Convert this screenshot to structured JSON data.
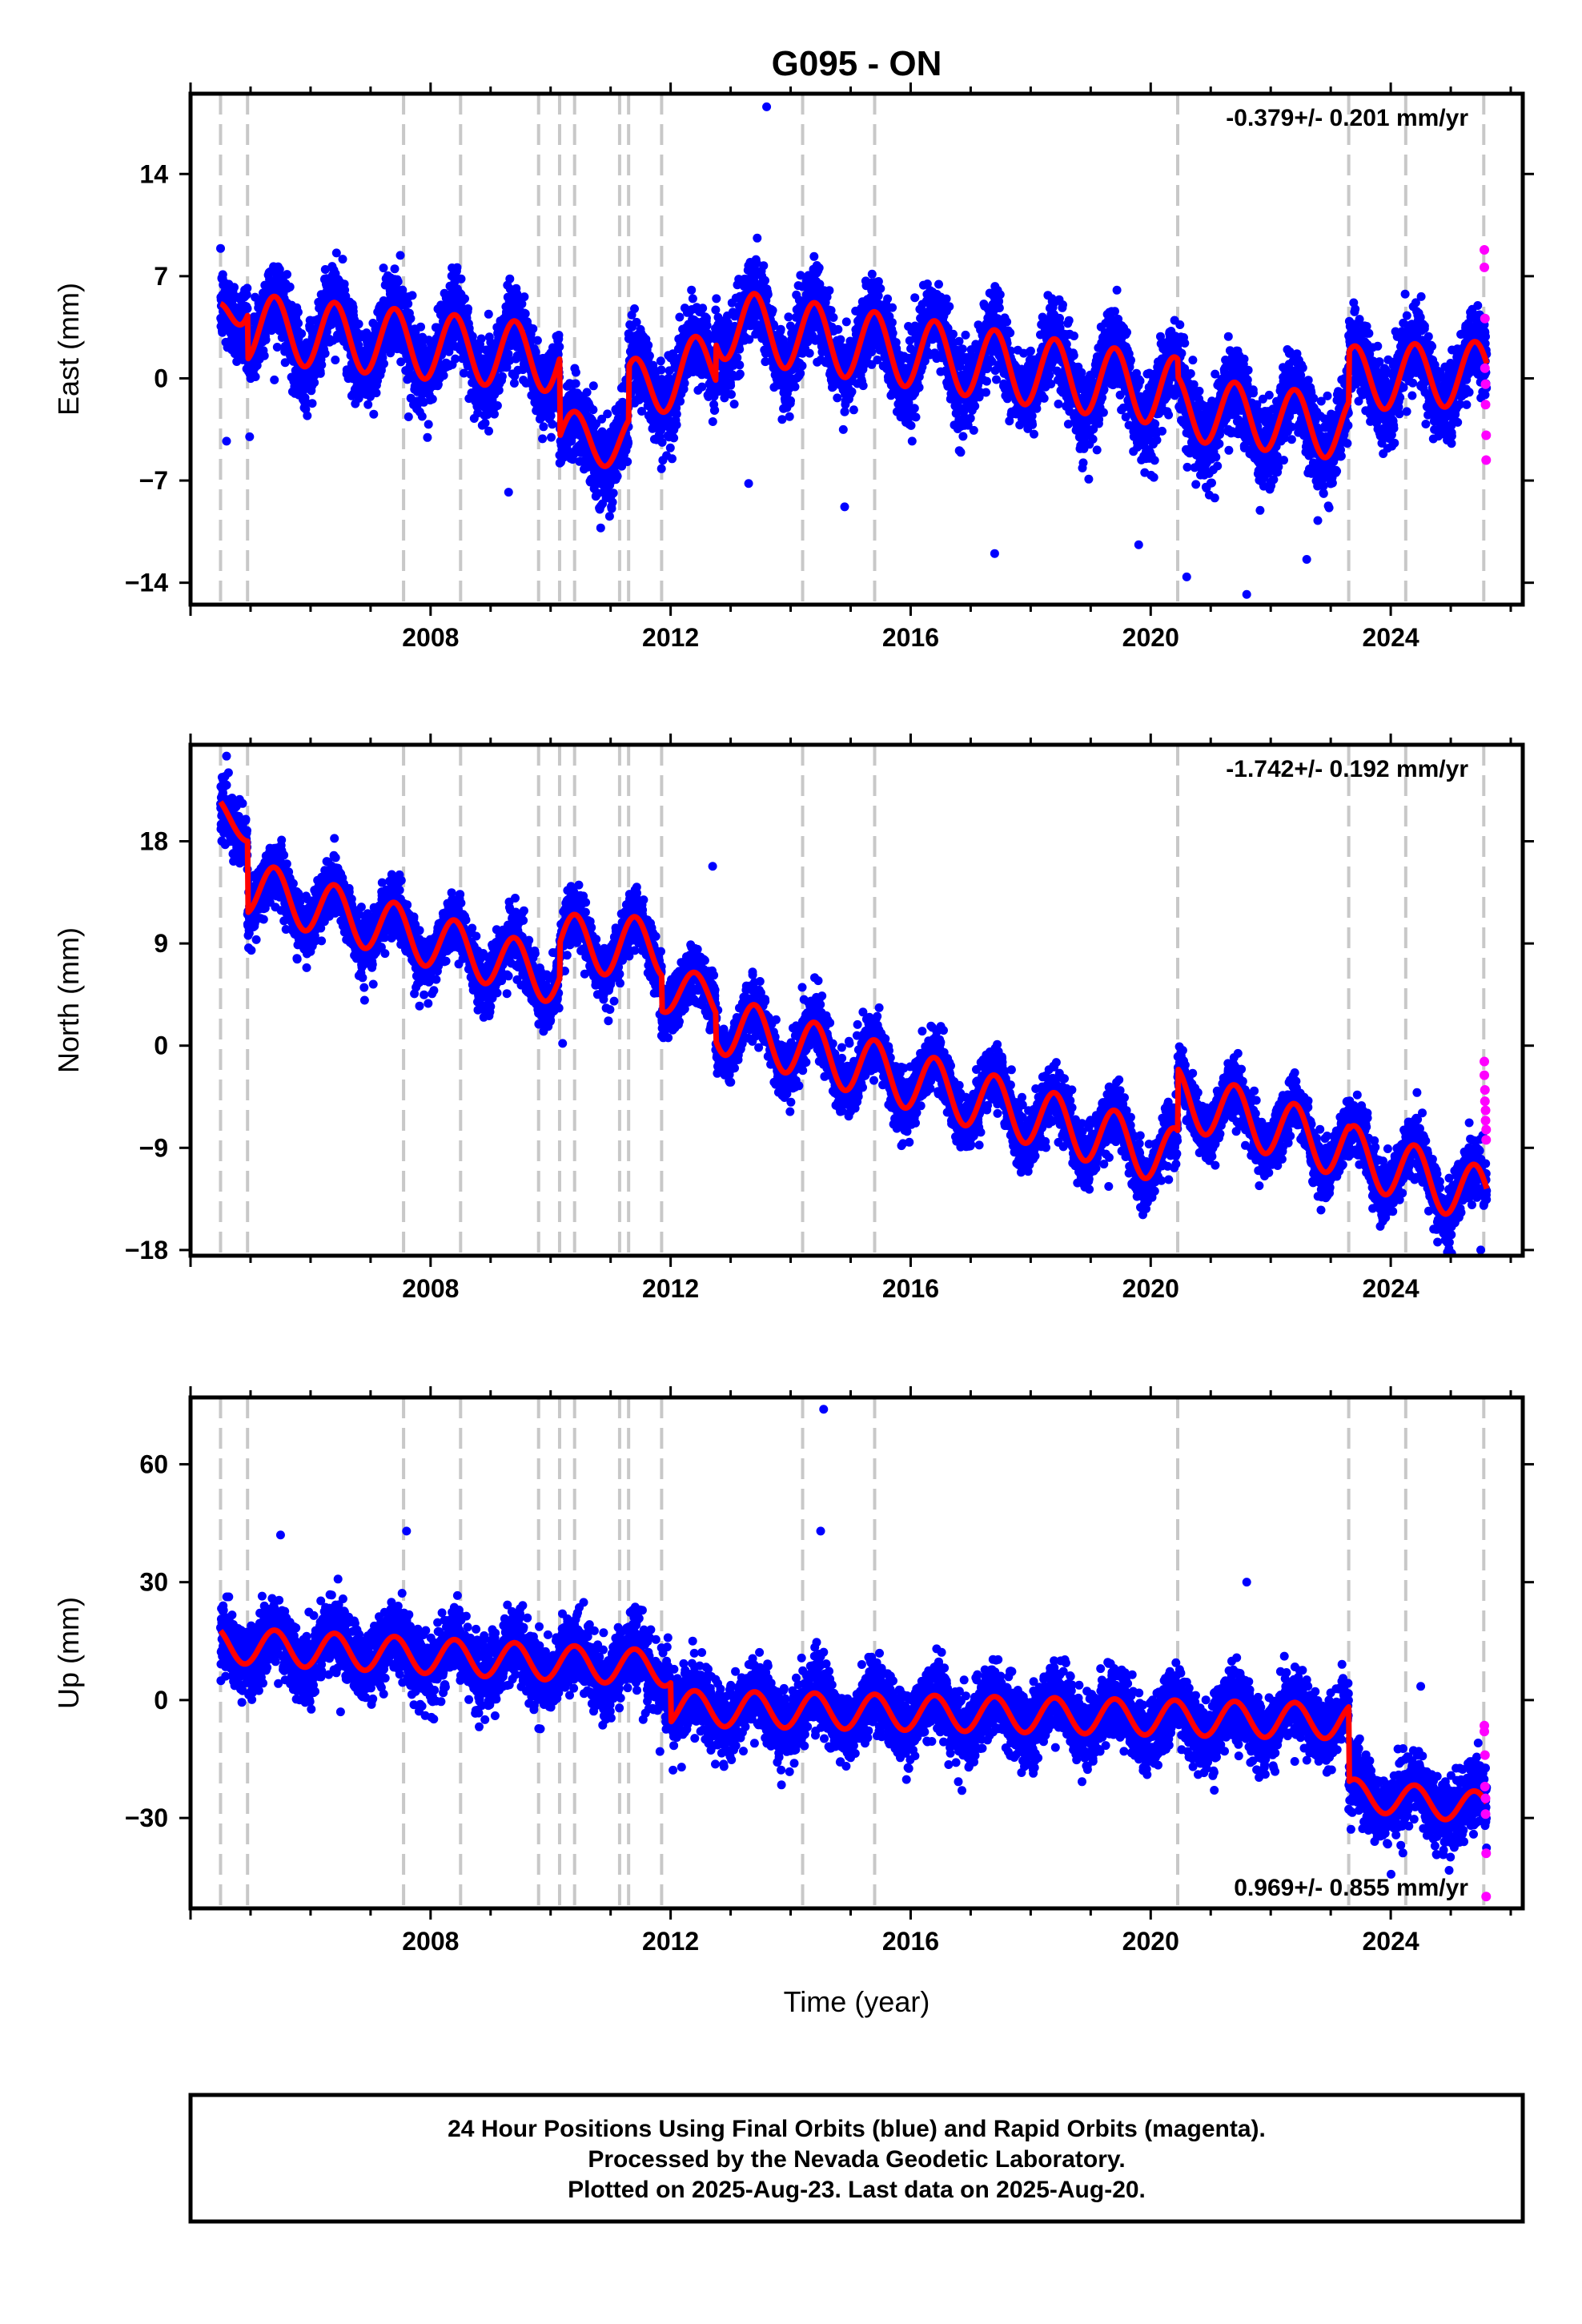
{
  "title": "G095 - ON",
  "x_axis_label": "Time (year)",
  "colors": {
    "final_orbits": "#0000ff",
    "rapid_orbits": "#ff00ff",
    "model": "#ff0000",
    "event_lines": "#c8c8c8"
  },
  "footer": {
    "line1": "24 Hour Positions Using Final Orbits (blue) and Rapid Orbits (magenta).",
    "line2": "Processed by the Nevada Geodetic Laboratory.",
    "line3": "Plotted on 2025-Aug-23. Last data on 2025-Aug-20."
  },
  "chart_data": [
    {
      "type": "scatter",
      "component": "East",
      "ylabel": "East (mm)",
      "rate_label": "-0.379+/- 0.201 mm/yr",
      "rate_position": "top-right",
      "xlim": [
        2004.0,
        2026.2
      ],
      "ylim": [
        -15.5,
        19.5
      ],
      "x_ticks": [
        2008,
        2012,
        2016,
        2020,
        2024
      ],
      "y_ticks": [
        -14,
        -7,
        0,
        7,
        14
      ],
      "grid": false,
      "event_lines_x": [
        2004.5,
        2004.95,
        2007.55,
        2008.5,
        2009.8,
        2010.15,
        2010.4,
        2011.15,
        2011.3,
        2011.85,
        2014.2,
        2015.4,
        2020.45,
        2023.3,
        2024.25,
        2025.55
      ],
      "model_segments": [
        {
          "start": 2004.5,
          "end": 2004.95,
          "offset": 3.5,
          "slope": 6.0,
          "amp": 2.0
        },
        {
          "start": 2004.95,
          "end": 2010.15,
          "offset": 3.5,
          "slope": -0.42,
          "amp": 2.3
        },
        {
          "start": 2010.15,
          "end": 2011.3,
          "offset": -4.0,
          "slope": -0.3,
          "amp": 1.8
        },
        {
          "start": 2011.3,
          "end": 2012.75,
          "offset": -1.0,
          "slope": 1.5,
          "amp": 2.2
        },
        {
          "start": 2012.75,
          "end": 2020.45,
          "offset": 3.8,
          "slope": -0.62,
          "amp": 2.4
        },
        {
          "start": 2020.45,
          "end": 2023.3,
          "offset": -2.0,
          "slope": -0.5,
          "amp": 2.2
        },
        {
          "start": 2023.3,
          "end": 2025.6,
          "offset": 0.0,
          "slope": 0.15,
          "amp": 2.2
        }
      ],
      "scatter_spread": 2.2,
      "rapid_points": [
        [
          2025.56,
          8.8
        ],
        [
          2025.56,
          7.6
        ],
        [
          2025.57,
          4.1
        ],
        [
          2025.57,
          0.7
        ],
        [
          2025.58,
          -0.4
        ],
        [
          2025.58,
          -1.8
        ],
        [
          2025.59,
          -3.9
        ],
        [
          2025.59,
          -5.6
        ]
      ],
      "outliers": [
        [
          2013.6,
          18.6
        ],
        [
          2013.4,
          4.2
        ],
        [
          2013.3,
          -7.2
        ],
        [
          2017.4,
          -12.0
        ],
        [
          2019.8,
          -11.4
        ],
        [
          2020.6,
          -13.6
        ],
        [
          2021.6,
          -14.8
        ],
        [
          2022.6,
          -12.4
        ],
        [
          2004.6,
          -4.3
        ],
        [
          2014.9,
          -8.8
        ],
        [
          2009.3,
          -7.8
        ]
      ]
    },
    {
      "type": "scatter",
      "component": "North",
      "ylabel": "North (mm)",
      "rate_label": "-1.742+/- 0.192 mm/yr",
      "rate_position": "top-right",
      "xlim": [
        2004.0,
        2026.2
      ],
      "ylim": [
        -18.5,
        26.5
      ],
      "x_ticks": [
        2008,
        2012,
        2016,
        2020,
        2024
      ],
      "y_ticks": [
        -18,
        -9,
        0,
        9,
        18
      ],
      "grid": false,
      "event_lines_x": [
        2004.5,
        2004.95,
        2007.55,
        2008.5,
        2009.8,
        2010.15,
        2010.4,
        2011.15,
        2011.3,
        2011.85,
        2014.2,
        2015.4,
        2020.45,
        2023.3,
        2024.25,
        2025.55
      ],
      "model_segments": [
        {
          "start": 2004.5,
          "end": 2004.95,
          "offset": 20.5,
          "slope": -3.0,
          "amp": 1.2
        },
        {
          "start": 2004.95,
          "end": 2010.15,
          "offset": 14.0,
          "slope": -1.55,
          "amp": 2.4
        },
        {
          "start": 2010.15,
          "end": 2011.85,
          "offset": 9.0,
          "slope": -0.2,
          "amp": 2.6
        },
        {
          "start": 2011.85,
          "end": 2012.75,
          "offset": 5.0,
          "slope": -1.0,
          "amp": 2.0
        },
        {
          "start": 2012.75,
          "end": 2020.45,
          "offset": 2.0,
          "slope": -1.55,
          "amp": 2.6
        },
        {
          "start": 2020.45,
          "end": 2023.3,
          "offset": -4.5,
          "slope": -1.65,
          "amp": 2.6
        },
        {
          "start": 2023.3,
          "end": 2025.6,
          "offset": -9.5,
          "slope": -1.7,
          "amp": 2.6
        }
      ],
      "scatter_spread": 2.0,
      "rapid_points": [
        [
          2025.56,
          -1.4
        ],
        [
          2025.56,
          -2.6
        ],
        [
          2025.57,
          -3.9
        ],
        [
          2025.57,
          -4.9
        ],
        [
          2025.58,
          -5.7
        ],
        [
          2025.58,
          -6.6
        ],
        [
          2025.59,
          -7.4
        ],
        [
          2025.59,
          -8.3
        ]
      ],
      "outliers": [
        [
          2004.6,
          25.5
        ],
        [
          2006.9,
          4.0
        ],
        [
          2010.2,
          0.2
        ],
        [
          2012.7,
          15.8
        ],
        [
          2017.8,
          -10.5
        ],
        [
          2019.3,
          -12.4
        ],
        [
          2020.3,
          -11.8
        ],
        [
          2025.5,
          -18.0
        ]
      ]
    },
    {
      "type": "scatter",
      "component": "Up",
      "ylabel": "Up (mm)",
      "rate_label": "0.969+/- 0.855 mm/yr",
      "rate_position": "bottom-right",
      "xlim": [
        2004.0,
        2026.2
      ],
      "ylim": [
        -53,
        77
      ],
      "x_ticks": [
        2008,
        2012,
        2016,
        2020,
        2024
      ],
      "y_ticks": [
        -30,
        0,
        30,
        60
      ],
      "grid": false,
      "event_lines_x": [
        2004.5,
        2004.95,
        2007.55,
        2008.5,
        2009.8,
        2010.15,
        2010.4,
        2011.15,
        2011.3,
        2011.85,
        2014.2,
        2015.4,
        2020.45,
        2023.3,
        2024.25,
        2025.55
      ],
      "model_segments": [
        {
          "start": 2004.5,
          "end": 2012.0,
          "offset": 14.0,
          "slope": -0.8,
          "amp": 4.5
        },
        {
          "start": 2012.0,
          "end": 2023.3,
          "offset": -2.0,
          "slope": -0.3,
          "amp": 4.5
        },
        {
          "start": 2023.3,
          "end": 2025.6,
          "offset": -24.0,
          "slope": -1.5,
          "amp": 4.0
        }
      ],
      "scatter_spread": 7.0,
      "rapid_points": [
        [
          2025.56,
          -6.5
        ],
        [
          2025.56,
          -8.0
        ],
        [
          2025.57,
          -14.0
        ],
        [
          2025.57,
          -22.0
        ],
        [
          2025.58,
          -25.0
        ],
        [
          2025.58,
          -29.0
        ],
        [
          2025.59,
          -39.0
        ],
        [
          2025.59,
          -50.0
        ]
      ],
      "outliers": [
        [
          2014.55,
          74.0
        ],
        [
          2014.5,
          43.0
        ],
        [
          2007.6,
          43.0
        ],
        [
          2005.5,
          42.0
        ],
        [
          2021.6,
          30.0
        ],
        [
          2024.5,
          3.5
        ],
        [
          2006.5,
          -3.0
        ]
      ]
    }
  ]
}
